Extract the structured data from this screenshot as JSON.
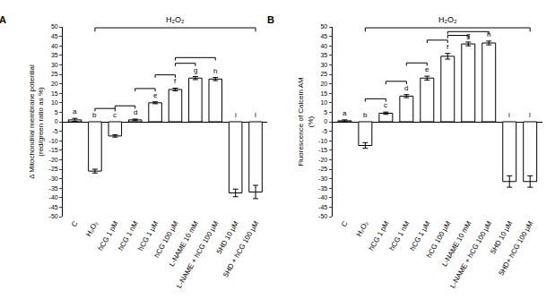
{
  "chart_data": [
    {
      "type": "bar",
      "title": "A",
      "ylabel": "Δ Mitochondrial membrane potential (red/green ratio as %)",
      "categories": [
        "C",
        "H₂O₂",
        "hCG 1 pM",
        "hCG 1 nM",
        "hCG 1 µM",
        "hCG 100 µM",
        "L-NAME 10 mM",
        "L-NAME + hCG 100 µM",
        "5HD 10 µM",
        "5HD + hCG 100 µM"
      ],
      "values": [
        1,
        -26,
        -7.5,
        1,
        10,
        17,
        23,
        22.5,
        -37.5,
        -37
      ],
      "error": [
        0.8,
        1,
        0.6,
        0.4,
        0.5,
        0.7,
        0.8,
        0.8,
        2,
        3.5
      ],
      "annotations": [
        "a",
        "b",
        "c",
        "d",
        "e",
        "f",
        "g",
        "h",
        "i",
        "l"
      ],
      "bracket_label": "H₂O₂",
      "color": "#ffffff",
      "ylim": [
        -50,
        50
      ],
      "yticks": [
        -50,
        -45,
        -40,
        -35,
        -30,
        -25,
        -20,
        -15,
        -10,
        -5,
        0,
        5,
        10,
        15,
        20,
        25,
        30,
        35,
        40,
        45,
        50
      ],
      "grid": false
    },
    {
      "type": "bar",
      "title": "B",
      "ylabel": "Fluorescence of Calcein AM (%)",
      "categories": [
        "C",
        "H₂O₂",
        "hCG 1 pM",
        "hCG 1 nM",
        "hCG 1 µM",
        "hCG 100 µM",
        "L-NAME 10 mM",
        "L-NAME + hCG 100 µM",
        "5HD 10 µM",
        "5HD+ hCG 100 µM"
      ],
      "values": [
        0.5,
        -12.5,
        4.5,
        13.5,
        23,
        34.5,
        41,
        41.5,
        -31.5,
        -31.5
      ],
      "error": [
        0.5,
        1.5,
        0.6,
        0.8,
        1,
        1.5,
        1,
        1,
        3,
        3
      ],
      "annotations": [
        "a",
        "b",
        "c",
        "d",
        "e",
        "f",
        "g",
        "h",
        "i",
        "l"
      ],
      "bracket_label": "H₂O₂",
      "color": "#ffffff",
      "ylim": [
        -50,
        50
      ],
      "yticks": [
        -50,
        -45,
        -40,
        -35,
        -30,
        -25,
        -20,
        -15,
        -10,
        -5,
        0,
        5,
        10,
        15,
        20,
        25,
        30,
        35,
        40,
        45,
        50
      ],
      "grid": false
    }
  ]
}
